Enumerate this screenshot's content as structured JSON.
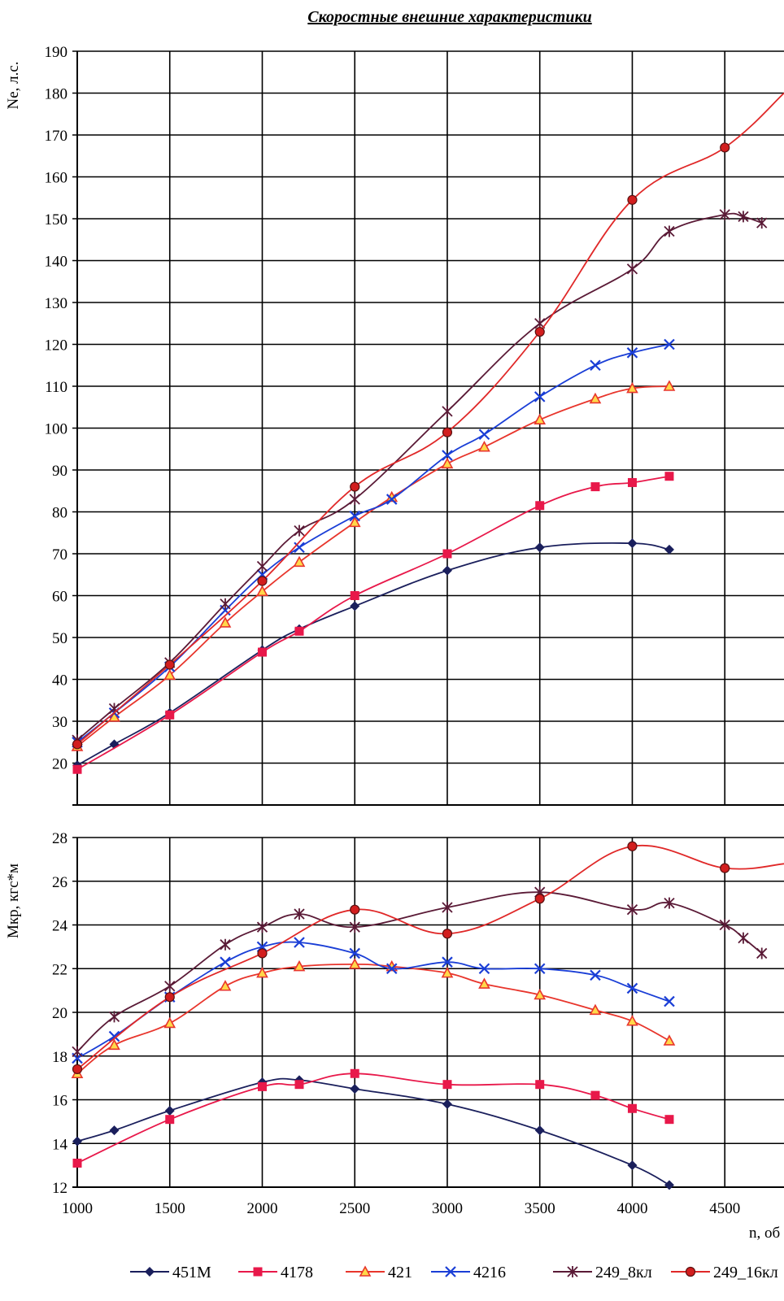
{
  "chart_data": {
    "type": "line",
    "title": "Скоростные внешние характеристики",
    "xlabel": "n, об",
    "x_ticks": [
      "1000",
      "1500",
      "2000",
      "2500",
      "3000",
      "3500",
      "4000",
      "4500"
    ],
    "xlim": [
      1000,
      4820
    ],
    "legend_position": "bottom",
    "grid": true,
    "colors": {
      "451M": "#1a1f5c",
      "4178": "#e8184a",
      "421": "#e8352c",
      "4216": "#1a3ed6",
      "249_8кл": "#5a1a36",
      "249_16кл": "#e02828"
    },
    "panels": [
      {
        "id": "power",
        "ylabel": "Ne, л.с.",
        "ylim": [
          10,
          190
        ],
        "y_ticks": [
          "20",
          "30",
          "40",
          "50",
          "60",
          "70",
          "80",
          "90",
          "100",
          "110",
          "120",
          "130",
          "140",
          "150",
          "160",
          "170",
          "180",
          "190"
        ],
        "series": [
          {
            "name": "451M",
            "marker": "diamond",
            "points": [
              [
                1000,
                19.5
              ],
              [
                1200,
                24.5
              ],
              [
                1500,
                32
              ],
              [
                2000,
                47
              ],
              [
                2200,
                52
              ],
              [
                2500,
                57.5
              ],
              [
                3000,
                66
              ],
              [
                3500,
                71.5
              ],
              [
                4000,
                72.5
              ],
              [
                4200,
                71
              ]
            ]
          },
          {
            "name": "4178",
            "marker": "square",
            "points": [
              [
                1000,
                18.5
              ],
              [
                1500,
                31.5
              ],
              [
                2000,
                46.5
              ],
              [
                2200,
                51.5
              ],
              [
                2500,
                60
              ],
              [
                3000,
                70
              ],
              [
                3500,
                81.5
              ],
              [
                3800,
                86
              ],
              [
                4000,
                87
              ],
              [
                4200,
                88.5
              ]
            ]
          },
          {
            "name": "421",
            "marker": "triangle",
            "points": [
              [
                1000,
                24
              ],
              [
                1200,
                31
              ],
              [
                1500,
                41
              ],
              [
                1800,
                53.5
              ],
              [
                2000,
                61
              ],
              [
                2200,
                68
              ],
              [
                2500,
                77.5
              ],
              [
                2700,
                83.5
              ],
              [
                3000,
                91.5
              ],
              [
                3200,
                95.5
              ],
              [
                3500,
                102
              ],
              [
                3800,
                107
              ],
              [
                4000,
                109.5
              ],
              [
                4200,
                110
              ]
            ]
          },
          {
            "name": "4216",
            "marker": "x",
            "points": [
              [
                1000,
                25
              ],
              [
                1200,
                32
              ],
              [
                1500,
                43
              ],
              [
                1800,
                56.5
              ],
              [
                2000,
                65
              ],
              [
                2200,
                71.5
              ],
              [
                2500,
                79
              ],
              [
                2700,
                83
              ],
              [
                3000,
                93.5
              ],
              [
                3200,
                98.5
              ],
              [
                3500,
                107.5
              ],
              [
                3800,
                115
              ],
              [
                4000,
                118
              ],
              [
                4200,
                120
              ]
            ]
          },
          {
            "name": "249_8кл",
            "marker": "star",
            "points": [
              [
                1000,
                25.5
              ],
              [
                1200,
                33
              ],
              [
                1500,
                44
              ],
              [
                1800,
                58
              ],
              [
                2000,
                67
              ],
              [
                2200,
                75.5
              ],
              [
                2500,
                83
              ],
              [
                3000,
                104
              ],
              [
                3500,
                125
              ],
              [
                4000,
                138
              ],
              [
                4200,
                147
              ],
              [
                4500,
                151
              ],
              [
                4600,
                150.5
              ],
              [
                4700,
                149
              ]
            ]
          },
          {
            "name": "249_16кл",
            "marker": "circle",
            "points": [
              [
                1000,
                24.5
              ],
              [
                1500,
                43.5
              ],
              [
                2000,
                63.5
              ],
              [
                2500,
                86
              ],
              [
                3000,
                99
              ],
              [
                3500,
                123
              ],
              [
                4000,
                154.5
              ],
              [
                4500,
                167
              ],
              [
                4820,
                180
              ]
            ]
          }
        ]
      },
      {
        "id": "torque",
        "ylabel": "Мкр, кгс*м",
        "ylim": [
          12,
          28
        ],
        "y_ticks": [
          "12",
          "14",
          "16",
          "18",
          "20",
          "22",
          "24",
          "26",
          "28"
        ],
        "series": [
          {
            "name": "451M",
            "marker": "diamond",
            "points": [
              [
                1000,
                14.1
              ],
              [
                1200,
                14.6
              ],
              [
                1500,
                15.5
              ],
              [
                2000,
                16.8
              ],
              [
                2200,
                16.9
              ],
              [
                2500,
                16.5
              ],
              [
                3000,
                15.8
              ],
              [
                3500,
                14.6
              ],
              [
                4000,
                13
              ],
              [
                4200,
                12.1
              ]
            ]
          },
          {
            "name": "4178",
            "marker": "square",
            "points": [
              [
                1000,
                13.1
              ],
              [
                1500,
                15.1
              ],
              [
                2000,
                16.6
              ],
              [
                2200,
                16.7
              ],
              [
                2500,
                17.2
              ],
              [
                3000,
                16.7
              ],
              [
                3500,
                16.7
              ],
              [
                3800,
                16.2
              ],
              [
                4000,
                15.6
              ],
              [
                4200,
                15.1
              ]
            ]
          },
          {
            "name": "421",
            "marker": "triangle",
            "points": [
              [
                1000,
                17.2
              ],
              [
                1200,
                18.5
              ],
              [
                1500,
                19.5
              ],
              [
                1800,
                21.2
              ],
              [
                2000,
                21.8
              ],
              [
                2200,
                22.1
              ],
              [
                2500,
                22.2
              ],
              [
                2700,
                22.1
              ],
              [
                3000,
                21.8
              ],
              [
                3200,
                21.3
              ],
              [
                3500,
                20.8
              ],
              [
                3800,
                20.1
              ],
              [
                4000,
                19.6
              ],
              [
                4200,
                18.7
              ]
            ]
          },
          {
            "name": "4216",
            "marker": "x",
            "points": [
              [
                1000,
                17.9
              ],
              [
                1200,
                18.9
              ],
              [
                1500,
                20.7
              ],
              [
                1800,
                22.3
              ],
              [
                2000,
                23
              ],
              [
                2200,
                23.2
              ],
              [
                2500,
                22.7
              ],
              [
                2700,
                22
              ],
              [
                3000,
                22.3
              ],
              [
                3200,
                22
              ],
              [
                3500,
                22
              ],
              [
                3800,
                21.7
              ],
              [
                4000,
                21.1
              ],
              [
                4200,
                20.5
              ]
            ]
          },
          {
            "name": "249_8кл",
            "marker": "star",
            "points": [
              [
                1000,
                18.2
              ],
              [
                1200,
                19.8
              ],
              [
                1500,
                21.2
              ],
              [
                1800,
                23.1
              ],
              [
                2000,
                23.9
              ],
              [
                2200,
                24.5
              ],
              [
                2500,
                23.9
              ],
              [
                3000,
                24.8
              ],
              [
                3500,
                25.5
              ],
              [
                4000,
                24.7
              ],
              [
                4200,
                25
              ],
              [
                4500,
                24
              ],
              [
                4600,
                23.4
              ],
              [
                4700,
                22.7
              ]
            ]
          },
          {
            "name": "249_16кл",
            "marker": "circle",
            "points": [
              [
                1000,
                17.4
              ],
              [
                1500,
                20.7
              ],
              [
                2000,
                22.7
              ],
              [
                2500,
                24.7
              ],
              [
                3000,
                23.6
              ],
              [
                3500,
                25.2
              ],
              [
                4000,
                27.6
              ],
              [
                4500,
                26.6
              ],
              [
                4820,
                26.8
              ]
            ]
          }
        ]
      }
    ],
    "legend": [
      "451M",
      "4178",
      "421",
      "4216",
      "249_8кл",
      "249_16кл"
    ]
  }
}
